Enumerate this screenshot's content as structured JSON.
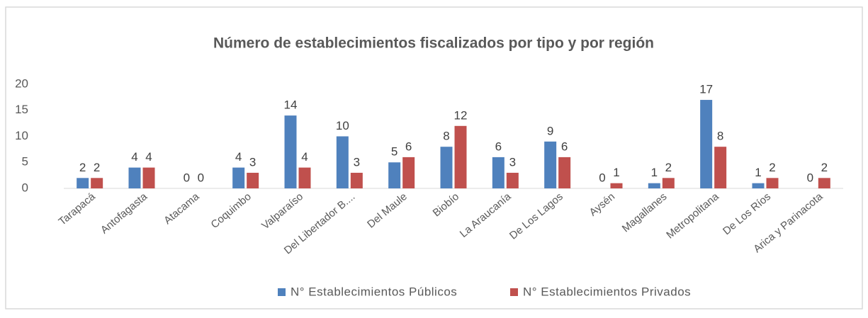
{
  "chart_data": {
    "type": "bar",
    "title": "Número de establecimientos fiscalizados por tipo y por región",
    "categories": [
      "Tarapacá",
      "Antofagasta",
      "Atacama",
      "Coquimbo",
      "Valparaíso",
      "Del Libertador B....",
      "Del Maule",
      "Biobío",
      "La Araucanía",
      "De Los Lagos",
      "Aysén",
      "Magallanes",
      "Metropolitana",
      "De Los Ríos",
      "Arica y Parinacota"
    ],
    "series": [
      {
        "name": "N° Establecimientos Públicos",
        "color": "#4f81bd",
        "values": [
          2,
          4,
          0,
          4,
          14,
          10,
          5,
          8,
          6,
          9,
          0,
          1,
          17,
          1,
          0
        ]
      },
      {
        "name": "N° Establecimientos Privados",
        "color": "#c0504d",
        "values": [
          2,
          4,
          0,
          3,
          4,
          3,
          6,
          12,
          3,
          6,
          1,
          2,
          8,
          2,
          2
        ]
      }
    ],
    "ylim": [
      0,
      20
    ],
    "yticks": [
      0,
      5,
      10,
      15,
      20
    ],
    "grid": false,
    "legend": "bottom"
  }
}
